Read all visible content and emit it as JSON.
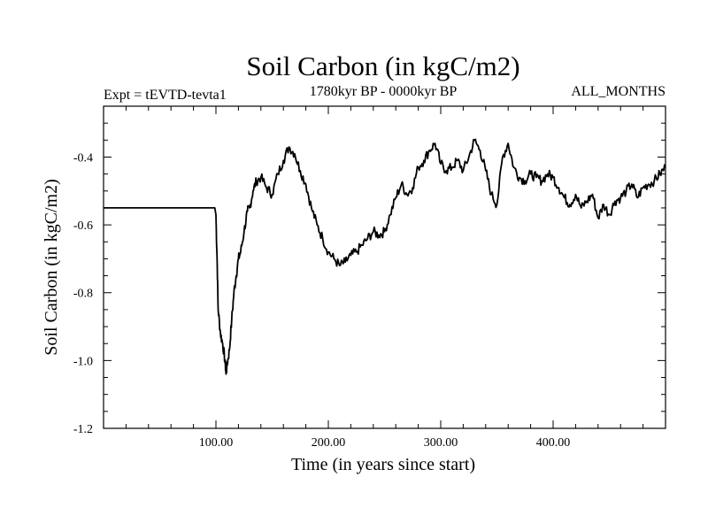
{
  "chart_data": {
    "type": "line",
    "title": "Soil Carbon (in kgC/m2)",
    "subtitle_left": "Expt = tEVTD-tevta1",
    "subtitle_center": "1780kyr BP - 0000kyr BP",
    "subtitle_right": "ALL_MONTHS",
    "xlabel": "Time (in years since start)",
    "ylabel": "Soil Carbon (in kgC/m2)",
    "xlim": [
      0,
      500
    ],
    "ylim": [
      -1.2,
      -0.25
    ],
    "xticks": [
      100,
      200,
      300,
      400
    ],
    "xtick_labels": [
      "100.00",
      "200.00",
      "300.00",
      "400.00"
    ],
    "yticks": [
      -1.2,
      -1.0,
      -0.8,
      -0.6,
      -0.4
    ],
    "ytick_labels": [
      "-1.2",
      "-1.0",
      "-0.8",
      "-0.6",
      "-0.4"
    ],
    "grid": false,
    "line_color": "#000000",
    "series": [
      {
        "name": "Soil Carbon",
        "x": [
          0,
          99,
          100,
          101,
          102,
          104,
          106,
          108,
          109,
          110,
          112,
          114,
          116,
          118,
          120,
          122,
          125,
          128,
          130,
          133,
          136,
          140,
          145,
          150,
          155,
          160,
          165,
          170,
          175,
          180,
          185,
          190,
          195,
          200,
          205,
          210,
          215,
          220,
          225,
          230,
          235,
          240,
          245,
          250,
          255,
          260,
          265,
          270,
          275,
          280,
          285,
          290,
          295,
          300,
          305,
          310,
          315,
          320,
          325,
          330,
          335,
          340,
          345,
          350,
          355,
          360,
          365,
          370,
          375,
          380,
          385,
          390,
          395,
          400,
          405,
          410,
          415,
          420,
          425,
          430,
          435,
          440,
          445,
          450,
          455,
          460,
          465,
          470,
          475,
          480,
          485,
          490,
          495,
          500
        ],
        "values": [
          -0.55,
          -0.55,
          -0.57,
          -0.7,
          -0.85,
          -0.92,
          -0.95,
          -1.0,
          -1.04,
          -1.01,
          -0.97,
          -0.88,
          -0.8,
          -0.75,
          -0.7,
          -0.68,
          -0.62,
          -0.56,
          -0.55,
          -0.5,
          -0.47,
          -0.46,
          -0.49,
          -0.51,
          -0.45,
          -0.41,
          -0.37,
          -0.39,
          -0.44,
          -0.48,
          -0.55,
          -0.6,
          -0.64,
          -0.68,
          -0.7,
          -0.72,
          -0.71,
          -0.69,
          -0.68,
          -0.66,
          -0.64,
          -0.62,
          -0.63,
          -0.62,
          -0.57,
          -0.52,
          -0.48,
          -0.51,
          -0.49,
          -0.43,
          -0.41,
          -0.38,
          -0.36,
          -0.42,
          -0.44,
          -0.43,
          -0.41,
          -0.44,
          -0.4,
          -0.35,
          -0.38,
          -0.44,
          -0.51,
          -0.54,
          -0.4,
          -0.36,
          -0.43,
          -0.46,
          -0.47,
          -0.45,
          -0.46,
          -0.47,
          -0.45,
          -0.46,
          -0.49,
          -0.52,
          -0.54,
          -0.51,
          -0.55,
          -0.53,
          -0.51,
          -0.58,
          -0.54,
          -0.57,
          -0.53,
          -0.52,
          -0.5,
          -0.48,
          -0.52,
          -0.49,
          -0.48,
          -0.47,
          -0.45,
          -0.43
        ]
      }
    ]
  }
}
